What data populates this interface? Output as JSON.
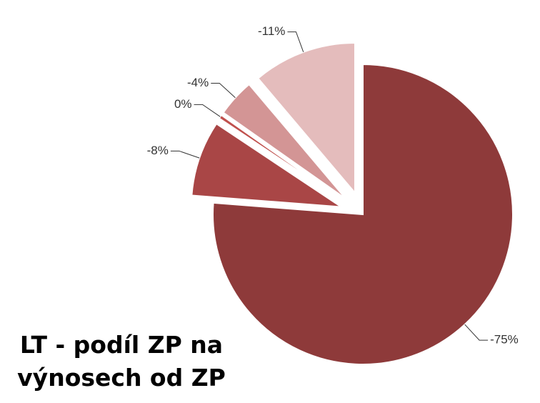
{
  "chart_data": {
    "type": "pie",
    "title": "LT - podíl ZP na výnosech od ZP",
    "categories": [
      null,
      null,
      null,
      null,
      null
    ],
    "values": [
      -75,
      -8,
      -0.4,
      -4,
      -11
    ],
    "value_labels": [
      "-75%",
      "-8%",
      "0%",
      "-4%",
      "-11%"
    ],
    "colors": [
      "#8e3a3a",
      "#a94646",
      "#c0504d",
      "#d39595",
      "#e4bcbc"
    ]
  }
}
